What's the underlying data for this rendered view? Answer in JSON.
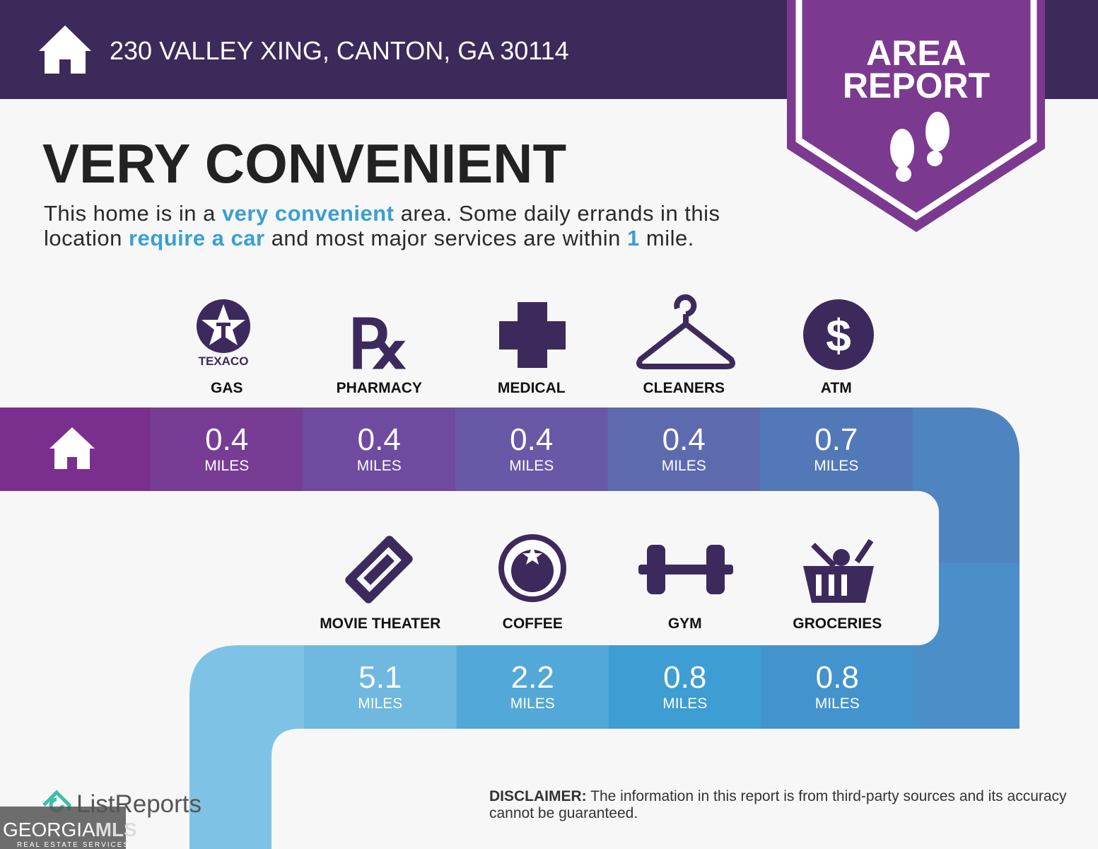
{
  "header": {
    "address": "230 VALLEY XING, CANTON, GA 30114"
  },
  "badge": {
    "line1": "AREA",
    "line2": "REPORT"
  },
  "headline": "VERY CONVENIENT",
  "description": [
    "This home is in a ",
    "very convenient",
    " area. Some daily errands in this location ",
    "require a car",
    " and most major services are within ",
    "1",
    " mile."
  ],
  "gas_brand": "TEXACO",
  "rows": [
    [
      {
        "label": "GAS",
        "distance": 0.4,
        "unit": "MILES"
      },
      {
        "label": "PHARMACY",
        "distance": 0.4,
        "unit": "MILES"
      },
      {
        "label": "MEDICAL",
        "distance": 0.4,
        "unit": "MILES"
      },
      {
        "label": "CLEANERS",
        "distance": 0.4,
        "unit": "MILES"
      },
      {
        "label": "ATM",
        "distance": 0.7,
        "unit": "MILES"
      }
    ],
    [
      {
        "label": "MOVIE THEATER",
        "distance": 5.1,
        "unit": "MILES"
      },
      {
        "label": "COFFEE",
        "distance": 2.2,
        "unit": "MILES"
      },
      {
        "label": "GYM",
        "distance": 0.8,
        "unit": "MILES"
      },
      {
        "label": "GROCERIES",
        "distance": 0.8,
        "unit": "MILES"
      }
    ]
  ],
  "footer": {
    "brand": "ListReports",
    "disclaimer_label": "DISCLAIMER:",
    "disclaimer_text": " The information in this report is from third-party sources and its accuracy cannot be guaranteed.",
    "watermark": {
      "part1": "GEORGIA",
      "part2": "MLS",
      "tagline": "REAL ESTATE SERVICES"
    }
  }
}
